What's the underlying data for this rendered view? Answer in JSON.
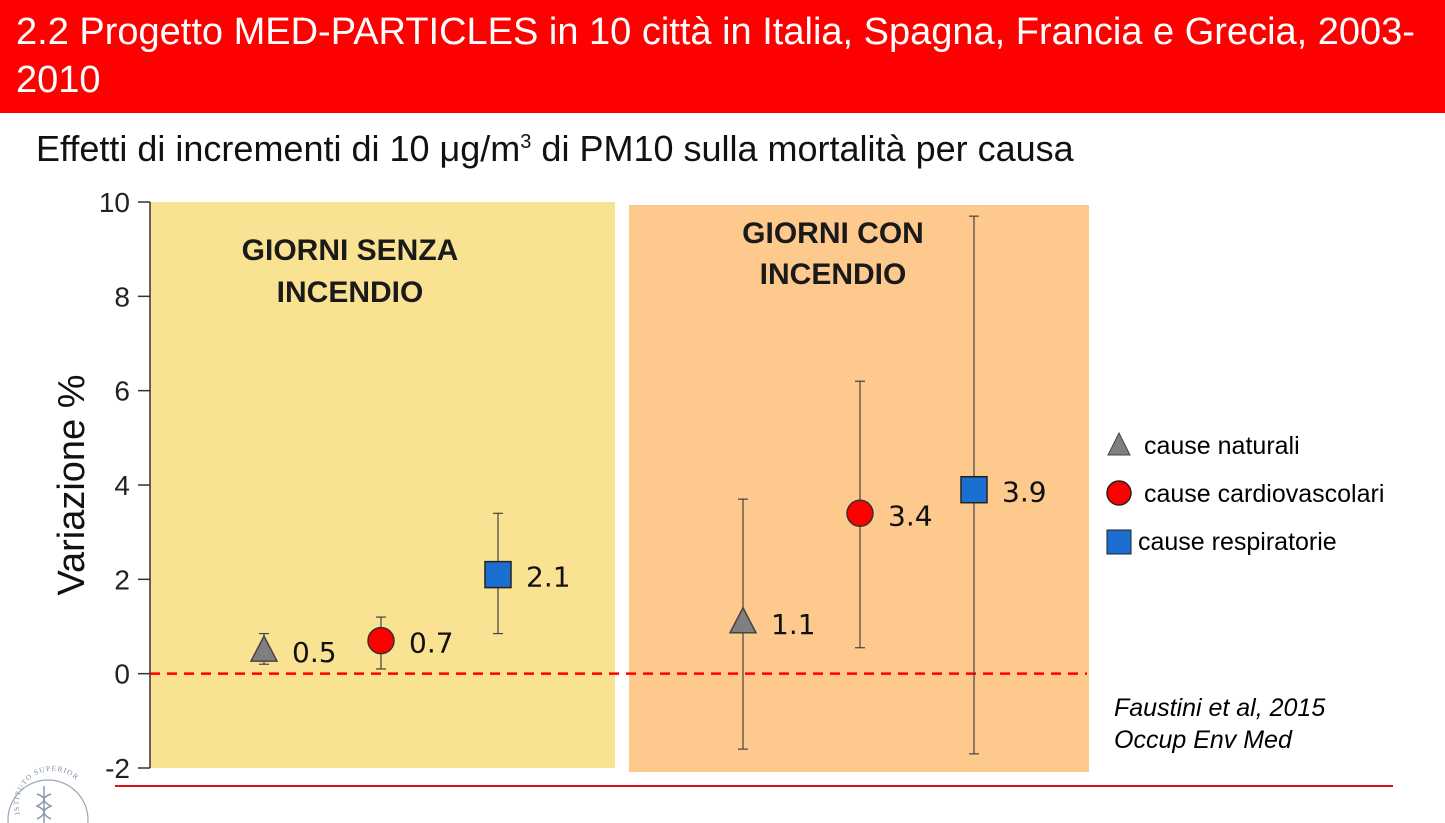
{
  "header": {
    "title": "2.2 Progetto MED-PARTICLES  in 10 città in Italia, Spagna, Francia e Grecia, 2003-2010",
    "background": "#ff0000"
  },
  "subtitle": {
    "before": "Effetti di incrementi di 10 μg/m",
    "superscript": "3",
    "after": " di PM10 sulla mortalità per causa"
  },
  "chart_data": {
    "type": "scatter",
    "ylabel": "Variazione %",
    "ylim": [
      -2,
      10
    ],
    "yticks": [
      10,
      8,
      6,
      4,
      2,
      0,
      -2
    ],
    "reference_line": {
      "y": 0,
      "style": "dashed",
      "color": "#ff0000"
    },
    "panels": [
      {
        "label_line1": "GIORNI SENZA",
        "label_line2": "INCENDIO",
        "color": "#f9e292"
      },
      {
        "label_line1": "GIORNI CON",
        "label_line2": "INCENDIO",
        "color": "#fdc98c"
      }
    ],
    "series": [
      {
        "name": "cause naturali",
        "marker": "triangle",
        "color": "#7f7f7f"
      },
      {
        "name": "cause cardiovascolari",
        "marker": "circle",
        "color": "#ff0000"
      },
      {
        "name": "cause respiratorie",
        "marker": "square",
        "color": "#1a6fd0"
      }
    ],
    "points": [
      {
        "panel": 0,
        "series": 0,
        "value": 0.5,
        "low": 0.2,
        "high": 0.85,
        "label": "0.5"
      },
      {
        "panel": 0,
        "series": 1,
        "value": 0.7,
        "low": 0.1,
        "high": 1.2,
        "label": "0.7"
      },
      {
        "panel": 0,
        "series": 2,
        "value": 2.1,
        "low": 0.85,
        "high": 3.4,
        "label": "2.1"
      },
      {
        "panel": 1,
        "series": 0,
        "value": 1.1,
        "low": -1.6,
        "high": 3.7,
        "label": "1.1"
      },
      {
        "panel": 1,
        "series": 1,
        "value": 3.4,
        "low": 0.55,
        "high": 6.2,
        "label": "3.4"
      },
      {
        "panel": 1,
        "series": 2,
        "value": 3.9,
        "low": -1.7,
        "high": 9.7,
        "label": "3.9"
      }
    ]
  },
  "citation": {
    "line1": "Faustini et al, 2015",
    "line2": "Occup Env Med"
  },
  "logo": {
    "text": "ISTITUTO SUPERIORE DI SANITÀ"
  }
}
